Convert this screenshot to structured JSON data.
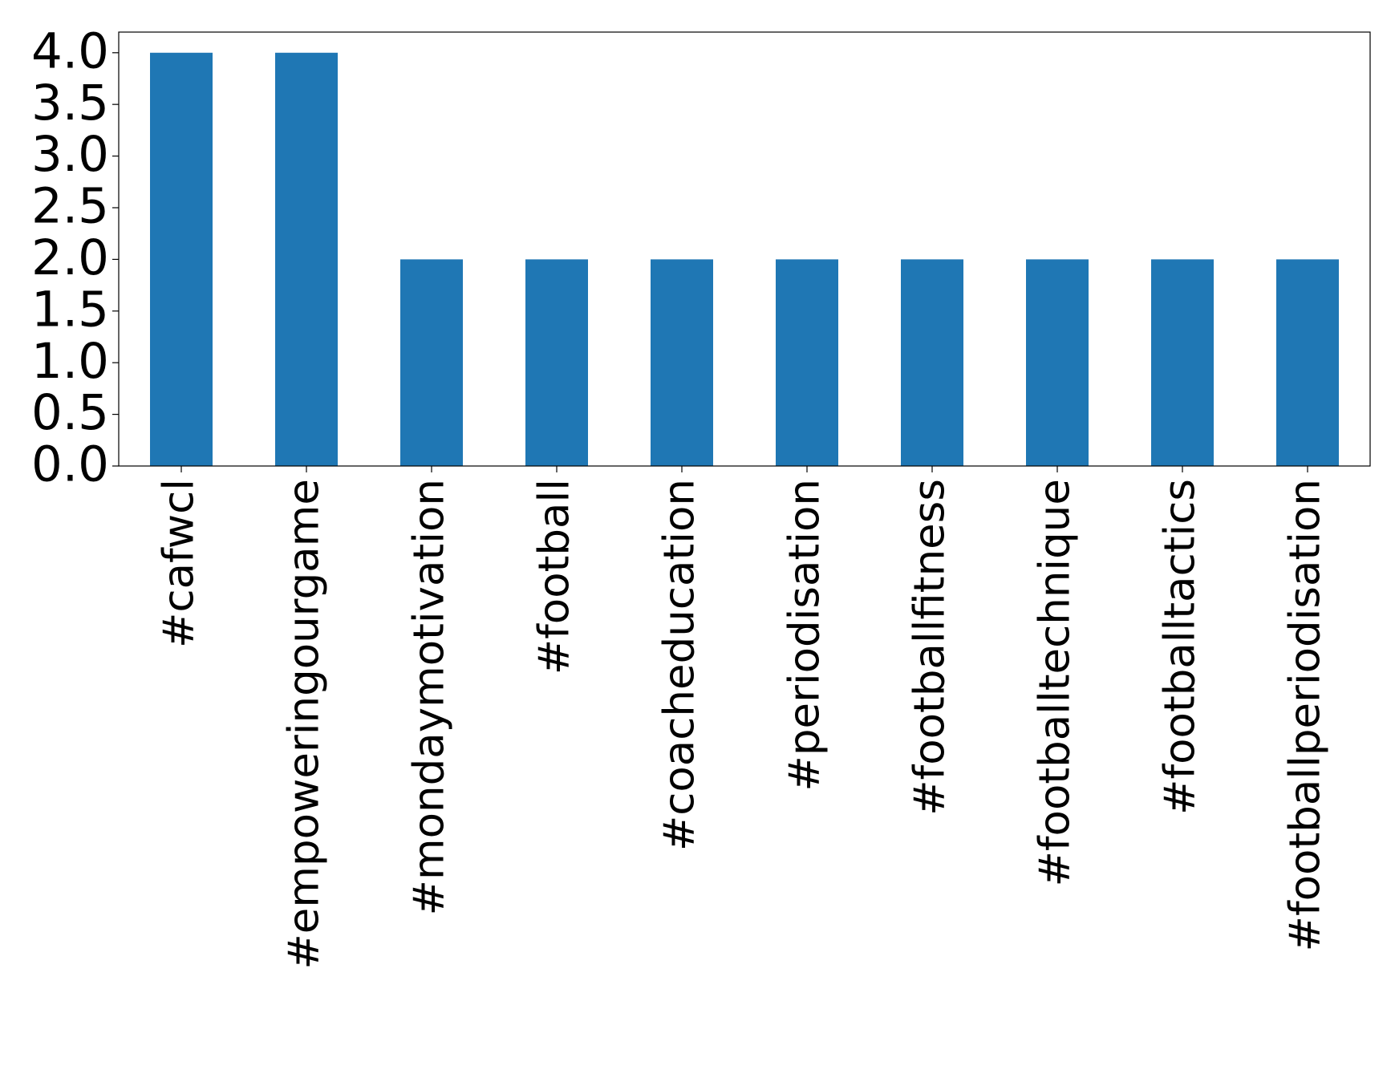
{
  "chart_data": {
    "type": "bar",
    "categories": [
      "#cafwcl",
      "#empoweringourgame",
      "#mondaymotivation",
      "#football",
      "#coacheducation",
      "#periodisation",
      "#footballfitness",
      "#footballtechnique",
      "#footballtactics",
      "#footballperiodisation"
    ],
    "values": [
      4,
      4,
      2,
      2,
      2,
      2,
      2,
      2,
      2,
      2
    ],
    "color": "#1f77b4",
    "ylim": [
      0,
      4.2
    ],
    "yticks": [
      {
        "value": 0,
        "label": "0.0"
      },
      0.5,
      {
        "value": 1,
        "label": "1.0"
      },
      1.5,
      {
        "value": 2,
        "label": "2.0"
      },
      2.5,
      {
        "value": 3,
        "label": "3.0"
      },
      3.5,
      {
        "value": 4,
        "label": "4.0"
      }
    ],
    "grid": false
  }
}
